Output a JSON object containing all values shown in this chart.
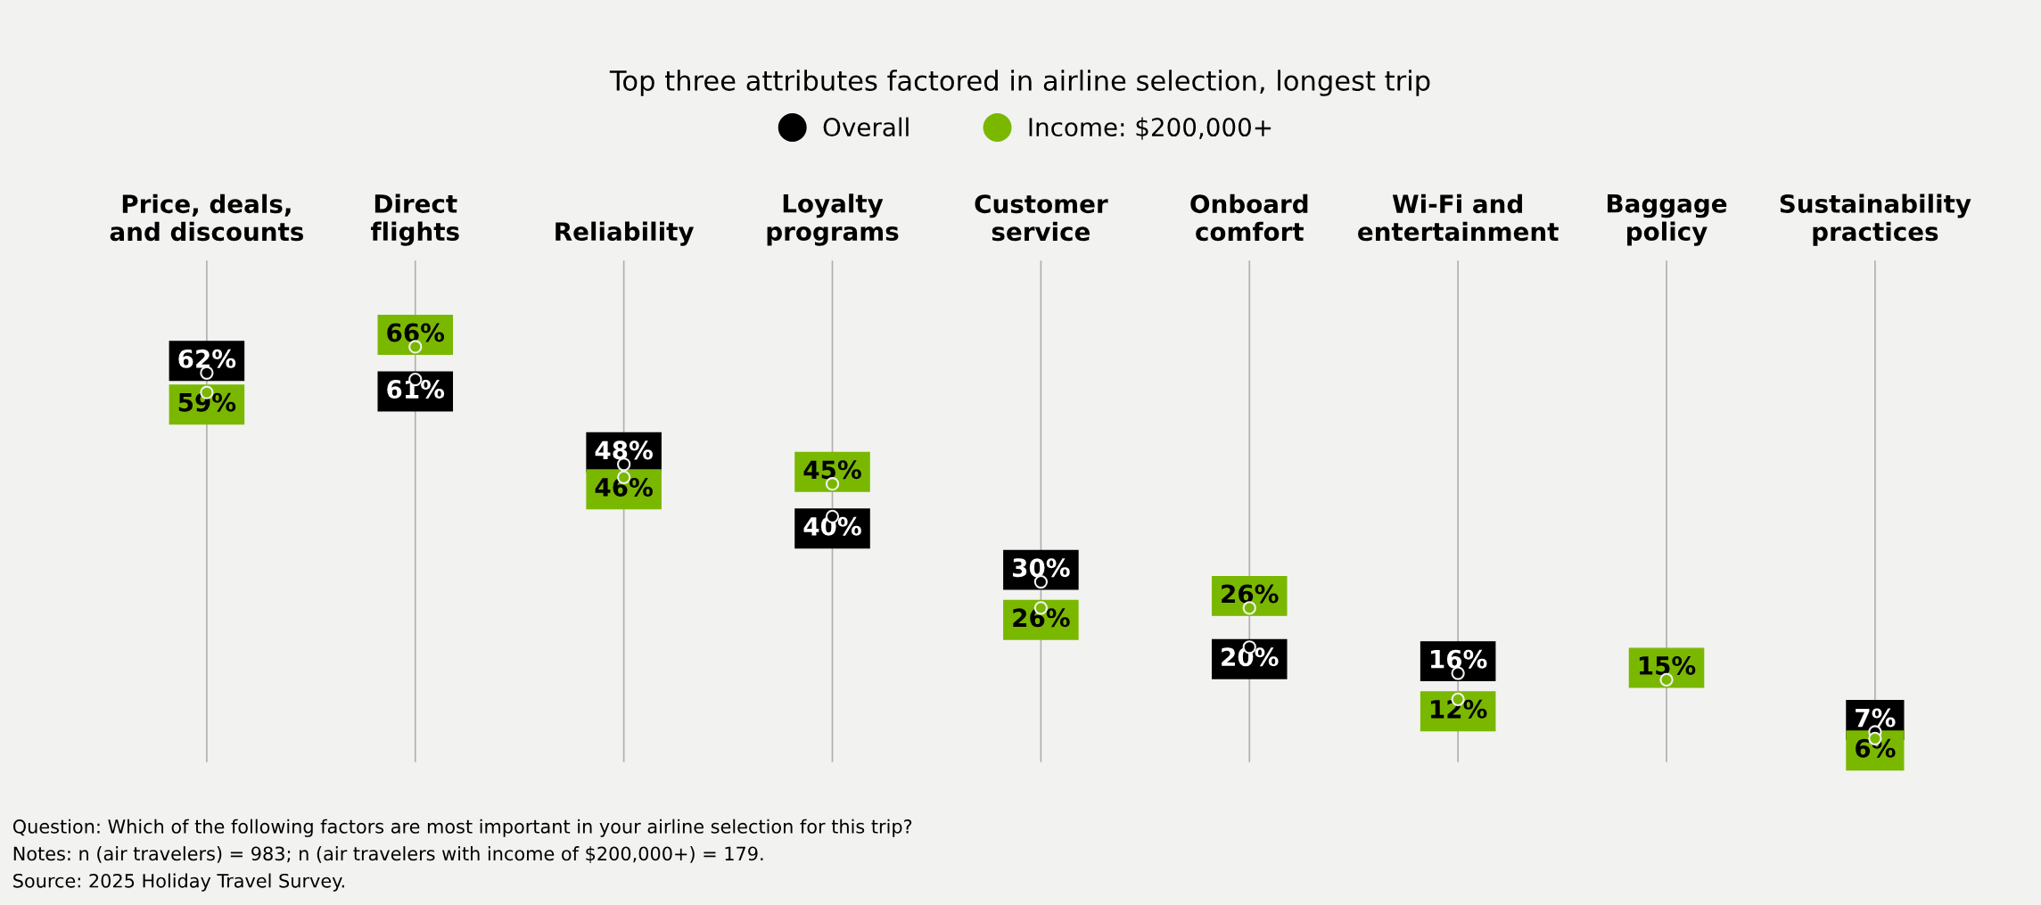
{
  "chart_data": {
    "type": "scatter",
    "title": "Top three attributes factored in airline selection, longest trip",
    "categories": [
      "Price, deals,\nand discounts",
      "Direct\nflights",
      "Reliability",
      "Loyalty\nprograms",
      "Customer\nservice",
      "Onboard\ncomfort",
      "Wi-Fi and\nentertainment",
      "Baggage\npolicy",
      "Sustainability\npractices"
    ],
    "series": [
      {
        "name": "Overall",
        "color": "#000000",
        "values": [
          62,
          61,
          48,
          40,
          30,
          20,
          16,
          null,
          7
        ],
        "value_labels": [
          "62%",
          "61%",
          "48%",
          "40%",
          "30%",
          "20%",
          "16%",
          null,
          "7%"
        ]
      },
      {
        "name": "Income: $200,000+",
        "color": "#7ab800",
        "values": [
          59,
          66,
          46,
          45,
          26,
          26,
          12,
          15,
          6
        ],
        "value_labels": [
          "59%",
          "66%",
          "46%",
          "45%",
          "26%",
          "26%",
          "12%",
          "15%",
          "6%"
        ]
      }
    ],
    "grid": "x",
    "legend": "top",
    "marker": "circle",
    "tick_labels": "x",
    "annotations": [
      "Question: Which of the following factors are most important in your airline selection for this trip?",
      "Notes: n (air travelers) = 983; n (air travelers with income of $200,000+) = 179.",
      "Source: 2025 Holiday Travel Survey."
    ]
  }
}
